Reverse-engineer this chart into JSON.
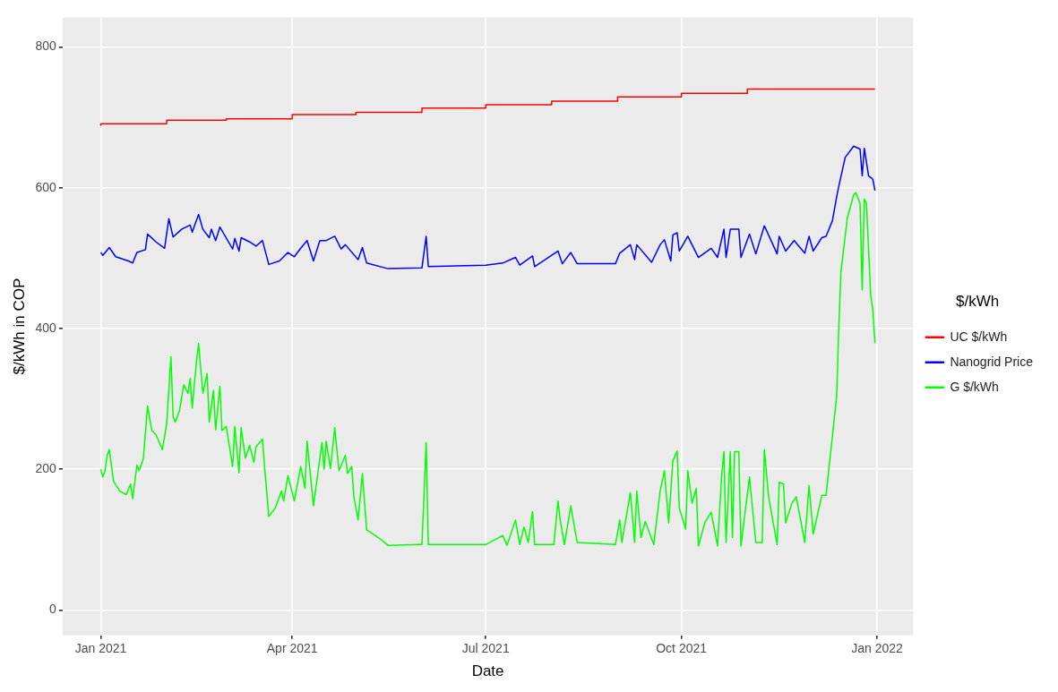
{
  "chart_data": {
    "type": "line",
    "xlabel": "Date",
    "ylabel": "$/kWh in COP",
    "legend_title": "$/kWh",
    "legend": "right",
    "grid": true,
    "xlim": [
      "2020-12-14",
      "2022-01-18"
    ],
    "xticks": [
      {
        "value": "2021-01-01",
        "label": "Jan 2021"
      },
      {
        "value": "2021-04-01",
        "label": "Apr 2021"
      },
      {
        "value": "2021-07-01",
        "label": "Jul 2021"
      },
      {
        "value": "2021-10-01",
        "label": "Oct 2021"
      },
      {
        "value": "2022-01-01",
        "label": "Jan 2022"
      }
    ],
    "ylim": [
      -36,
      842
    ],
    "yticks": [
      0,
      200,
      400,
      600,
      800
    ],
    "series": [
      {
        "name": "UC $/kWh",
        "type": "step",
        "color": "#ff0000",
        "x": [
          "2021-01-01",
          "2021-02-01",
          "2021-03-01",
          "2021-04-01",
          "2021-05-01",
          "2021-06-01",
          "2021-07-01",
          "2021-08-01",
          "2021-09-01",
          "2021-10-01",
          "2021-11-01",
          "2021-12-01",
          "2021-12-31"
        ],
        "values": [
          688,
          691,
          696,
          698,
          704,
          707,
          713,
          718,
          723,
          729,
          734,
          740,
          740
        ]
      },
      {
        "name": "Nanogrid Price",
        "color": "#0000ff",
        "x": [
          "2021-01-01",
          "2021-01-02",
          "2021-01-05",
          "2021-01-08",
          "2021-01-14",
          "2021-01-16",
          "2021-01-18",
          "2021-01-22",
          "2021-01-23",
          "2021-01-27",
          "2021-01-31",
          "2021-02-02",
          "2021-02-04",
          "2021-02-08",
          "2021-02-12",
          "2021-02-13",
          "2021-02-16",
          "2021-02-18",
          "2021-02-21",
          "2021-02-22",
          "2021-02-24",
          "2021-02-26",
          "2021-03-04",
          "2021-03-05",
          "2021-03-07",
          "2021-03-08",
          "2021-03-12",
          "2021-03-15",
          "2021-03-18",
          "2021-03-21",
          "2021-03-26",
          "2021-03-30",
          "2021-04-02",
          "2021-04-05",
          "2021-04-08",
          "2021-04-11",
          "2021-04-14",
          "2021-04-17",
          "2021-04-21",
          "2021-04-24",
          "2021-04-26",
          "2021-05-02",
          "2021-05-04",
          "2021-05-06",
          "2021-05-16",
          "2021-06-01",
          "2021-06-03",
          "2021-06-04",
          "2021-07-01",
          "2021-07-09",
          "2021-07-15",
          "2021-07-17",
          "2021-07-23",
          "2021-07-24",
          "2021-08-04",
          "2021-08-06",
          "2021-08-10",
          "2021-08-13",
          "2021-08-31",
          "2021-09-02",
          "2021-09-07",
          "2021-09-09",
          "2021-09-10",
          "2021-09-17",
          "2021-09-21",
          "2021-09-23",
          "2021-09-26",
          "2021-09-27",
          "2021-09-29",
          "2021-09-30",
          "2021-10-04",
          "2021-10-09",
          "2021-10-15",
          "2021-10-18",
          "2021-10-21",
          "2021-10-22",
          "2021-10-24",
          "2021-10-28",
          "2021-10-29",
          "2021-11-02",
          "2021-11-05",
          "2021-11-09",
          "2021-11-15",
          "2021-11-16",
          "2021-11-19",
          "2021-11-23",
          "2021-11-28",
          "2021-11-30",
          "2021-12-02",
          "2021-12-06",
          "2021-12-08",
          "2021-12-11",
          "2021-12-13",
          "2021-12-14",
          "2021-12-17",
          "2021-12-21",
          "2021-12-24",
          "2021-12-25",
          "2021-12-26",
          "2021-12-28",
          "2021-12-30",
          "2021-12-31"
        ],
        "values": [
          508,
          504,
          515,
          502,
          496,
          493,
          508,
          512,
          534,
          523,
          514,
          556,
          530,
          541,
          547,
          537,
          562,
          541,
          529,
          541,
          525,
          544,
          513,
          528,
          510,
          529,
          523,
          517,
          525,
          491,
          496,
          508,
          502,
          514,
          525,
          496,
          525,
          525,
          531,
          513,
          519,
          498,
          515,
          493,
          485,
          486,
          531,
          488,
          490,
          493,
          501,
          490,
          503,
          488,
          510,
          492,
          508,
          492,
          492,
          507,
          519,
          498,
          519,
          494,
          519,
          526,
          496,
          533,
          536,
          510,
          531,
          501,
          514,
          501,
          541,
          501,
          541,
          541,
          501,
          534,
          506,
          546,
          506,
          531,
          510,
          525,
          507,
          531,
          510,
          529,
          531,
          553,
          587,
          602,
          643,
          659,
          655,
          617,
          656,
          617,
          612,
          596
        ]
      },
      {
        "name": "G $/kWh",
        "color": "#00ff00",
        "x": [
          "2021-01-01",
          "2021-01-02",
          "2021-01-03",
          "2021-01-04",
          "2021-01-05",
          "2021-01-07",
          "2021-01-10",
          "2021-01-13",
          "2021-01-15",
          "2021-01-16",
          "2021-01-18",
          "2021-01-19",
          "2021-01-21",
          "2021-01-23",
          "2021-01-25",
          "2021-01-27",
          "2021-01-30",
          "2021-02-01",
          "2021-02-03",
          "2021-02-04",
          "2021-02-05",
          "2021-02-07",
          "2021-02-09",
          "2021-02-11",
          "2021-02-12",
          "2021-02-13",
          "2021-02-15",
          "2021-02-16",
          "2021-02-18",
          "2021-02-20",
          "2021-02-21",
          "2021-02-23",
          "2021-02-24",
          "2021-02-26",
          "2021-02-27",
          "2021-03-01",
          "2021-03-04",
          "2021-03-05",
          "2021-03-07",
          "2021-03-08",
          "2021-03-10",
          "2021-03-12",
          "2021-03-14",
          "2021-03-15",
          "2021-03-18",
          "2021-03-19",
          "2021-03-21",
          "2021-03-24",
          "2021-03-27",
          "2021-03-28",
          "2021-03-30",
          "2021-04-02",
          "2021-04-05",
          "2021-04-07",
          "2021-04-08",
          "2021-04-11",
          "2021-04-15",
          "2021-04-16",
          "2021-04-17",
          "2021-04-19",
          "2021-04-21",
          "2021-04-23",
          "2021-04-26",
          "2021-04-27",
          "2021-04-29",
          "2021-04-30",
          "2021-05-02",
          "2021-05-04",
          "2021-05-06",
          "2021-05-12",
          "2021-05-16",
          "2021-05-30",
          "2021-06-01",
          "2021-06-03",
          "2021-06-04",
          "2021-07-01",
          "2021-07-09",
          "2021-07-11",
          "2021-07-15",
          "2021-07-17",
          "2021-07-19",
          "2021-07-21",
          "2021-07-23",
          "2021-07-24",
          "2021-08-02",
          "2021-08-04",
          "2021-08-05",
          "2021-08-07",
          "2021-08-10",
          "2021-08-13",
          "2021-08-31",
          "2021-09-02",
          "2021-09-03",
          "2021-09-07",
          "2021-09-09",
          "2021-09-10",
          "2021-09-12",
          "2021-09-14",
          "2021-09-18",
          "2021-09-21",
          "2021-09-23",
          "2021-09-25",
          "2021-09-27",
          "2021-09-29",
          "2021-09-30",
          "2021-10-03",
          "2021-10-04",
          "2021-10-06",
          "2021-10-08",
          "2021-10-09",
          "2021-10-12",
          "2021-10-15",
          "2021-10-18",
          "2021-10-20",
          "2021-10-21",
          "2021-10-22",
          "2021-10-24",
          "2021-10-25",
          "2021-10-26",
          "2021-10-28",
          "2021-10-29",
          "2021-11-02",
          "2021-11-05",
          "2021-11-08",
          "2021-11-09",
          "2021-11-11",
          "2021-11-15",
          "2021-11-16",
          "2021-11-18",
          "2021-11-19",
          "2021-11-22",
          "2021-11-24",
          "2021-11-28",
          "2021-11-30",
          "2021-12-02",
          "2021-12-06",
          "2021-12-08",
          "2021-12-11",
          "2021-12-13",
          "2021-12-14",
          "2021-12-15",
          "2021-12-18",
          "2021-12-21",
          "2021-12-22",
          "2021-12-24",
          "2021-12-25",
          "2021-12-26",
          "2021-12-27",
          "2021-12-29",
          "2021-12-30",
          "2021-12-31"
        ],
        "values": [
          200,
          189,
          198,
          220,
          228,
          183,
          169,
          164,
          179,
          158,
          206,
          198,
          215,
          290,
          255,
          249,
          228,
          265,
          360,
          275,
          267,
          283,
          320,
          308,
          329,
          287,
          353,
          379,
          308,
          336,
          267,
          312,
          256,
          318,
          255,
          261,
          204,
          261,
          195,
          259,
          216,
          234,
          210,
          232,
          243,
          204,
          133,
          145,
          169,
          155,
          191,
          155,
          204,
          173,
          240,
          148,
          238,
          200,
          240,
          201,
          259,
          198,
          220,
          194,
          204,
          161,
          128,
          194,
          114,
          102,
          92,
          93,
          93,
          238,
          93,
          93,
          106,
          92,
          128,
          93,
          118,
          96,
          140,
          93,
          93,
          155,
          128,
          93,
          148,
          96,
          93,
          128,
          96,
          167,
          96,
          169,
          103,
          126,
          93,
          169,
          198,
          124,
          212,
          226,
          145,
          115,
          198,
          152,
          173,
          91,
          124,
          139,
          91,
          194,
          225,
          96,
          225,
          103,
          225,
          225,
          91,
          189,
          96,
          96,
          228,
          161,
          93,
          182,
          179,
          124,
          152,
          161,
          96,
          177,
          108,
          163,
          163,
          247,
          304,
          402,
          480,
          557,
          590,
          593,
          578,
          455,
          584,
          578,
          447,
          427,
          379
        ]
      }
    ]
  }
}
